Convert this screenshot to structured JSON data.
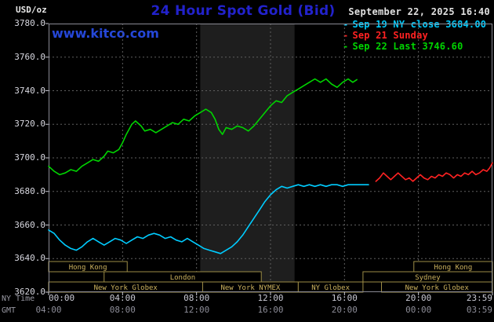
{
  "header": {
    "units_label": "USD/oz",
    "title": "24 Hour Spot Gold (Bid)",
    "datetime": "September 22, 2025 16:40",
    "watermark": "www.kitco.com",
    "legend": [
      {
        "marker": "-",
        "label": "Sep 19 NY close 3684.00",
        "color": "#00ccff"
      },
      {
        "marker": "-",
        "label": "Sep 21 Sunday",
        "color": "#ff2222"
      },
      {
        "marker": "-",
        "label": "Sep 22 Last 3746.60",
        "color": "#00d400"
      }
    ]
  },
  "axes": {
    "y_ticks": [
      "3780.0",
      "3760.0",
      "3740.0",
      "3720.0",
      "3700.0",
      "3680.0",
      "3660.0",
      "3640.0",
      "3620.0"
    ],
    "x_rows": [
      {
        "caption": "NY Time",
        "ticks": [
          "00:00",
          "04:00",
          "08:00",
          "12:00",
          "16:00",
          "20:00",
          "23:59"
        ]
      },
      {
        "caption": "GMT",
        "ticks": [
          "04:00",
          "08:00",
          "12:00",
          "16:00",
          "20:00",
          "00:00",
          "03:59"
        ]
      }
    ]
  },
  "chart_data": {
    "type": "line",
    "title": "24 Hour Spot Gold (Bid)",
    "xlabel": "NY Time (hours 00:00-23:59)",
    "ylabel": "USD/oz",
    "ylim": [
      3620,
      3780
    ],
    "y_step": 20,
    "xlim": [
      0,
      24
    ],
    "x_step": 4,
    "grid": true,
    "legend_position": "top-right",
    "colors": {
      "background": "#000000",
      "band": "#1e1e1e",
      "grid": "#5f5f5f",
      "frame": "#8a8a94",
      "tick": "#c8c8d2",
      "session_border": "#9c8c46",
      "session_text": "#cdb35f"
    },
    "nymex_band_hours": [
      8.2,
      13.3
    ],
    "series": [
      {
        "name": "Sep 19 NY close 3684.00",
        "color": "#00ccff",
        "points": [
          [
            0,
            3657
          ],
          [
            0.3,
            3655
          ],
          [
            0.6,
            3651
          ],
          [
            0.9,
            3648
          ],
          [
            1.2,
            3646
          ],
          [
            1.5,
            3645
          ],
          [
            1.8,
            3647
          ],
          [
            2.1,
            3650
          ],
          [
            2.4,
            3652
          ],
          [
            2.7,
            3650
          ],
          [
            3,
            3648
          ],
          [
            3.3,
            3650
          ],
          [
            3.6,
            3652
          ],
          [
            3.9,
            3651
          ],
          [
            4.2,
            3649
          ],
          [
            4.5,
            3651
          ],
          [
            4.8,
            3653
          ],
          [
            5.1,
            3652
          ],
          [
            5.4,
            3654
          ],
          [
            5.7,
            3655
          ],
          [
            6,
            3654
          ],
          [
            6.3,
            3652
          ],
          [
            6.6,
            3653
          ],
          [
            6.9,
            3651
          ],
          [
            7.2,
            3650
          ],
          [
            7.5,
            3652
          ],
          [
            7.8,
            3650
          ],
          [
            8.1,
            3648
          ],
          [
            8.4,
            3646
          ],
          [
            8.7,
            3645
          ],
          [
            9,
            3644
          ],
          [
            9.3,
            3643
          ],
          [
            9.6,
            3645
          ],
          [
            9.9,
            3647
          ],
          [
            10.2,
            3650
          ],
          [
            10.5,
            3654
          ],
          [
            10.8,
            3659
          ],
          [
            11.1,
            3664
          ],
          [
            11.4,
            3669
          ],
          [
            11.7,
            3674
          ],
          [
            12,
            3678
          ],
          [
            12.3,
            3681
          ],
          [
            12.6,
            3683
          ],
          [
            12.9,
            3682
          ],
          [
            13.2,
            3683
          ],
          [
            13.5,
            3684
          ],
          [
            13.8,
            3683
          ],
          [
            14.1,
            3684
          ],
          [
            14.4,
            3683
          ],
          [
            14.7,
            3684
          ],
          [
            15,
            3683
          ],
          [
            15.3,
            3684
          ],
          [
            15.6,
            3684
          ],
          [
            15.9,
            3683
          ],
          [
            16.2,
            3684
          ],
          [
            16.5,
            3684
          ],
          [
            16.8,
            3684
          ],
          [
            17.1,
            3684
          ],
          [
            17.3,
            3684
          ]
        ]
      },
      {
        "name": "Sep 21 Sunday",
        "color": "#ff2222",
        "points": [
          [
            17.7,
            3686
          ],
          [
            17.9,
            3688
          ],
          [
            18.1,
            3691
          ],
          [
            18.3,
            3689
          ],
          [
            18.5,
            3687
          ],
          [
            18.7,
            3689
          ],
          [
            18.9,
            3691
          ],
          [
            19.1,
            3689
          ],
          [
            19.3,
            3687
          ],
          [
            19.5,
            3688
          ],
          [
            19.7,
            3686
          ],
          [
            19.9,
            3688
          ],
          [
            20.1,
            3690
          ],
          [
            20.3,
            3688
          ],
          [
            20.5,
            3687
          ],
          [
            20.7,
            3689
          ],
          [
            20.9,
            3688
          ],
          [
            21.1,
            3690
          ],
          [
            21.3,
            3689
          ],
          [
            21.5,
            3691
          ],
          [
            21.7,
            3690
          ],
          [
            21.9,
            3688
          ],
          [
            22.1,
            3690
          ],
          [
            22.3,
            3689
          ],
          [
            22.5,
            3691
          ],
          [
            22.7,
            3690
          ],
          [
            22.9,
            3692
          ],
          [
            23.1,
            3690
          ],
          [
            23.3,
            3691
          ],
          [
            23.5,
            3693
          ],
          [
            23.7,
            3692
          ],
          [
            23.85,
            3694
          ],
          [
            24,
            3697
          ]
        ]
      },
      {
        "name": "Sep 22 Last 3746.60",
        "color": "#00d400",
        "points": [
          [
            0,
            3695
          ],
          [
            0.3,
            3692
          ],
          [
            0.6,
            3690
          ],
          [
            0.9,
            3691
          ],
          [
            1.2,
            3693
          ],
          [
            1.5,
            3692
          ],
          [
            1.8,
            3695
          ],
          [
            2.1,
            3697
          ],
          [
            2.4,
            3699
          ],
          [
            2.7,
            3698
          ],
          [
            3,
            3701
          ],
          [
            3.2,
            3704
          ],
          [
            3.5,
            3703
          ],
          [
            3.8,
            3705
          ],
          [
            4,
            3709
          ],
          [
            4.2,
            3714
          ],
          [
            4.5,
            3720
          ],
          [
            4.7,
            3722
          ],
          [
            5,
            3719
          ],
          [
            5.2,
            3716
          ],
          [
            5.5,
            3717
          ],
          [
            5.8,
            3715
          ],
          [
            6.1,
            3717
          ],
          [
            6.4,
            3719
          ],
          [
            6.7,
            3721
          ],
          [
            7,
            3720
          ],
          [
            7.3,
            3723
          ],
          [
            7.6,
            3722
          ],
          [
            7.9,
            3725
          ],
          [
            8.2,
            3727
          ],
          [
            8.5,
            3729
          ],
          [
            8.8,
            3727
          ],
          [
            9,
            3723
          ],
          [
            9.2,
            3717
          ],
          [
            9.4,
            3714
          ],
          [
            9.6,
            3718
          ],
          [
            9.9,
            3717
          ],
          [
            10.2,
            3719
          ],
          [
            10.5,
            3718
          ],
          [
            10.8,
            3716
          ],
          [
            11.1,
            3719
          ],
          [
            11.4,
            3723
          ],
          [
            11.7,
            3727
          ],
          [
            12,
            3731
          ],
          [
            12.3,
            3734
          ],
          [
            12.6,
            3733
          ],
          [
            12.9,
            3737
          ],
          [
            13.2,
            3739
          ],
          [
            13.5,
            3741
          ],
          [
            13.8,
            3743
          ],
          [
            14.1,
            3745
          ],
          [
            14.4,
            3747
          ],
          [
            14.7,
            3745
          ],
          [
            15,
            3747
          ],
          [
            15.3,
            3744
          ],
          [
            15.6,
            3742
          ],
          [
            15.9,
            3745
          ],
          [
            16.2,
            3747
          ],
          [
            16.45,
            3745
          ],
          [
            16.67,
            3746.6
          ]
        ]
      }
    ],
    "sessions": [
      {
        "row": 0,
        "label": "Hong Kong",
        "start": 0,
        "end": 4.25
      },
      {
        "row": 0,
        "label": "Hong Kong",
        "start": 19.75,
        "end": 24
      },
      {
        "row": 1,
        "label": "London",
        "start": 3.0,
        "end": 11.5
      },
      {
        "row": 1,
        "label": "Sydney",
        "start": 17.0,
        "end": 24
      },
      {
        "row": 2,
        "label": "New York Globex",
        "start": 0,
        "end": 8.33
      },
      {
        "row": 2,
        "label": "New York NYMEX",
        "start": 8.33,
        "end": 13.5
      },
      {
        "row": 2,
        "label": "NY Globex",
        "start": 13.5,
        "end": 17.0
      },
      {
        "row": 2,
        "label": "New York Globex",
        "start": 18.0,
        "end": 24
      }
    ]
  }
}
